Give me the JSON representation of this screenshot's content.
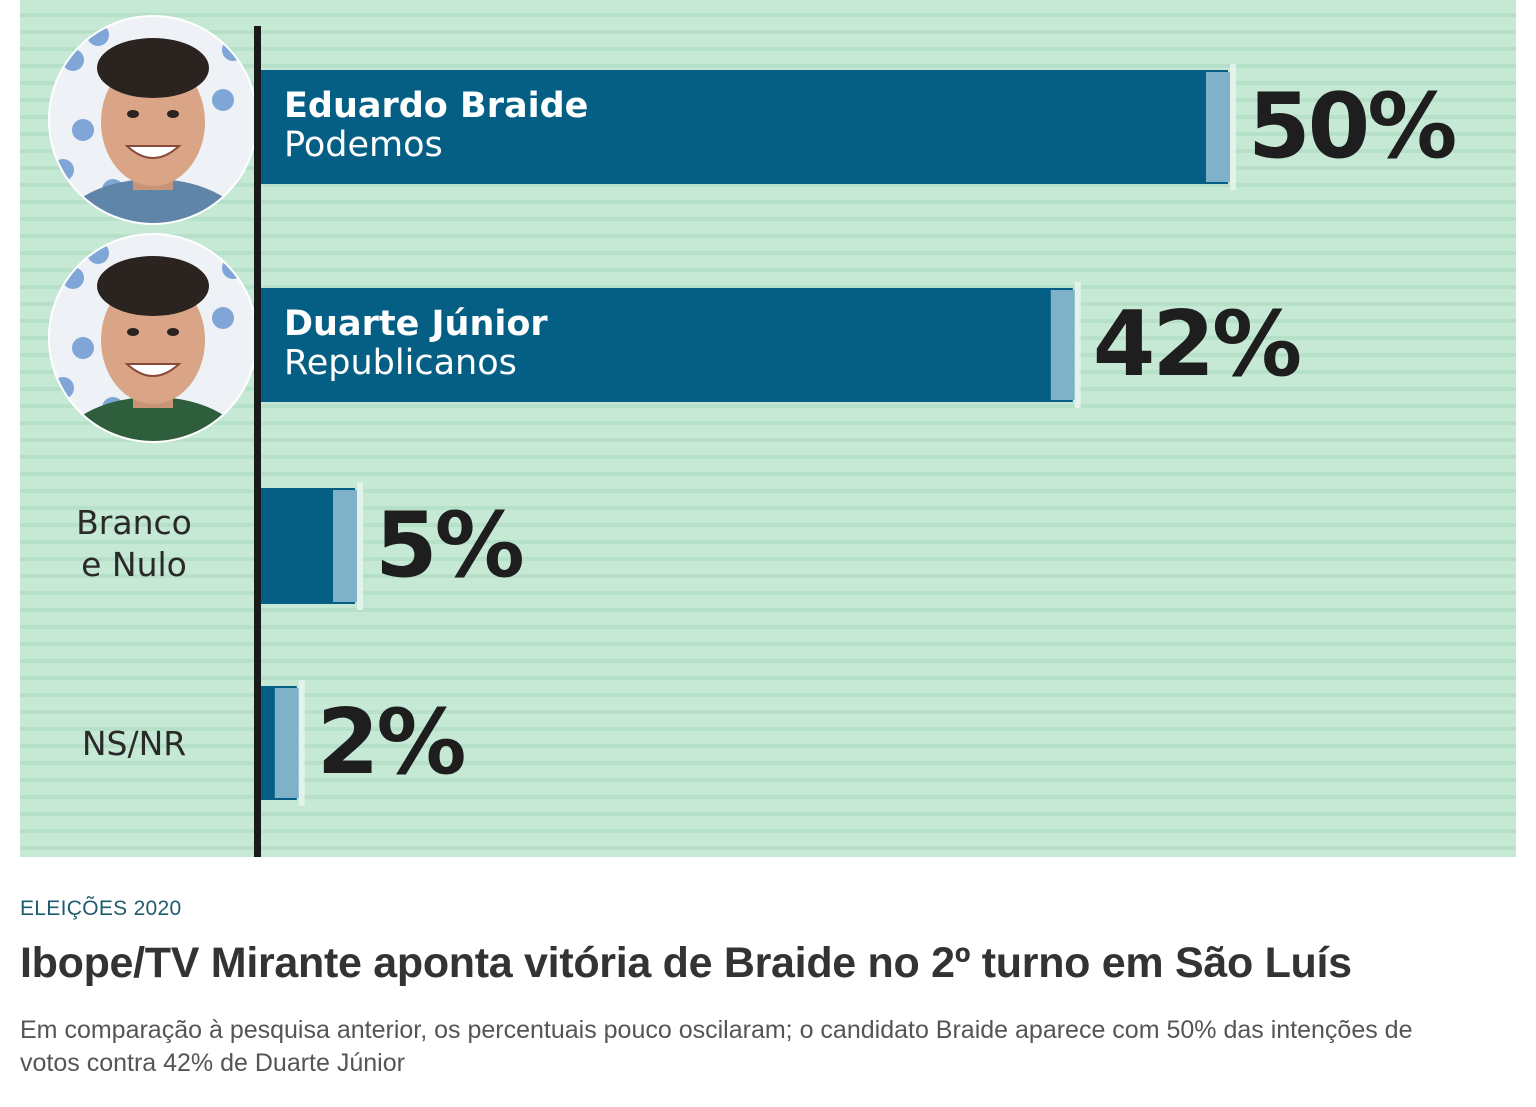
{
  "chart_data": {
    "type": "bar",
    "orientation": "horizontal",
    "categories": [
      {
        "name": "Eduardo Braide",
        "party": "Podemos",
        "label_position": "inside",
        "photo": "candidate-photo"
      },
      {
        "name": "Duarte Júnior",
        "party": "Republicanos",
        "label_position": "inside",
        "photo": "candidate-photo"
      },
      {
        "name": "Branco",
        "party": "e Nulo",
        "label_position": "left"
      },
      {
        "name": "NS/NR",
        "party": "",
        "label_position": "left"
      }
    ],
    "values": [
      50,
      42,
      5,
      2
    ],
    "value_labels": [
      "50%",
      "42%",
      "5%",
      "2%"
    ],
    "xlim": [
      0,
      50
    ],
    "colors": {
      "bar": "#055f84",
      "bar_cap": "#7fb1c9",
      "background": "#c6e9d6",
      "axis": "#1a1a1a",
      "value_text": "#1e1e1e"
    }
  },
  "article": {
    "kicker": "ELEIÇÕES 2020",
    "headline": "Ibope/TV Mirante aponta vitória de Braide no 2º turno em São Luís",
    "dek": "Em comparação à pesquisa anterior, os percentuais pouco oscilaram; o candidato Braide aparece com 50% das intenções de votos contra 42% de Duarte Júnior"
  }
}
